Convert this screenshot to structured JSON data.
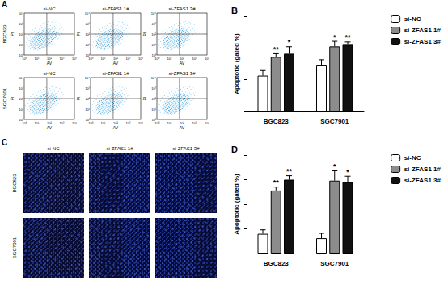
{
  "panels": {
    "A": {
      "label": "A",
      "rows": [
        "BGC823",
        "SGC7901"
      ],
      "columns": [
        "si-NC",
        "si-ZFAS1 1#",
        "si-ZFAS1 3#"
      ],
      "x_axis": "AV",
      "y_axis": "PI",
      "ticks": [
        "10⁰",
        "10¹",
        "10²",
        "10³",
        "10⁴"
      ]
    },
    "C": {
      "label": "C",
      "rows": [
        "BGC823",
        "SGC7901"
      ],
      "columns": [
        "si-NC",
        "si-ZFAS1 1#",
        "si-ZFAS1 3#"
      ]
    }
  },
  "chart_data": [
    {
      "type": "bar",
      "title": "B",
      "y_label": "Apoptotic (gated %)",
      "categories": [
        "BGC823",
        "SGC7901"
      ],
      "series": [
        {
          "name": "si-NC",
          "color": "#ffffff",
          "values": [
            11.3,
            14.5
          ],
          "errors": [
            1.6,
            1.8
          ],
          "annotations": [
            null,
            null
          ]
        },
        {
          "name": "si-ZFAS1 1#",
          "color": "#8c8c8c",
          "values": [
            17.2,
            20.5
          ],
          "errors": [
            1.0,
            1.6
          ],
          "annotations": [
            "**",
            "*"
          ]
        },
        {
          "name": "si-ZFAS1 3#",
          "color": "#111111",
          "values": [
            18.2,
            21.0
          ],
          "errors": [
            2.2,
            0.9
          ],
          "annotations": [
            "*",
            "**"
          ]
        }
      ],
      "ylim": [
        0,
        30
      ],
      "yticks": [
        0,
        10,
        20,
        30
      ],
      "tick_labels": "x",
      "grid": false,
      "legend": "top-right"
    },
    {
      "type": "bar",
      "title": "D",
      "y_label": "Apoptotic (gated %)",
      "categories": [
        "BGC823",
        "SGC7901"
      ],
      "series": [
        {
          "name": "si-NC",
          "color": "#ffffff",
          "values": [
            4.0,
            3.1
          ],
          "errors": [
            0.8,
            1.0
          ],
          "annotations": [
            null,
            null
          ]
        },
        {
          "name": "si-ZFAS1 1#",
          "color": "#8c8c8c",
          "values": [
            12.8,
            14.8
          ],
          "errors": [
            0.7,
            2.0
          ],
          "annotations": [
            "**",
            "*"
          ]
        },
        {
          "name": "si-ZFAS1 3#",
          "color": "#111111",
          "values": [
            15.0,
            14.5
          ],
          "errors": [
            0.8,
            1.2
          ],
          "annotations": [
            "**",
            "*"
          ]
        }
      ],
      "ylim": [
        0,
        20
      ],
      "yticks": [
        0,
        5,
        10,
        15,
        20
      ],
      "tick_labels": "x",
      "grid": false,
      "legend": "top-right"
    }
  ]
}
